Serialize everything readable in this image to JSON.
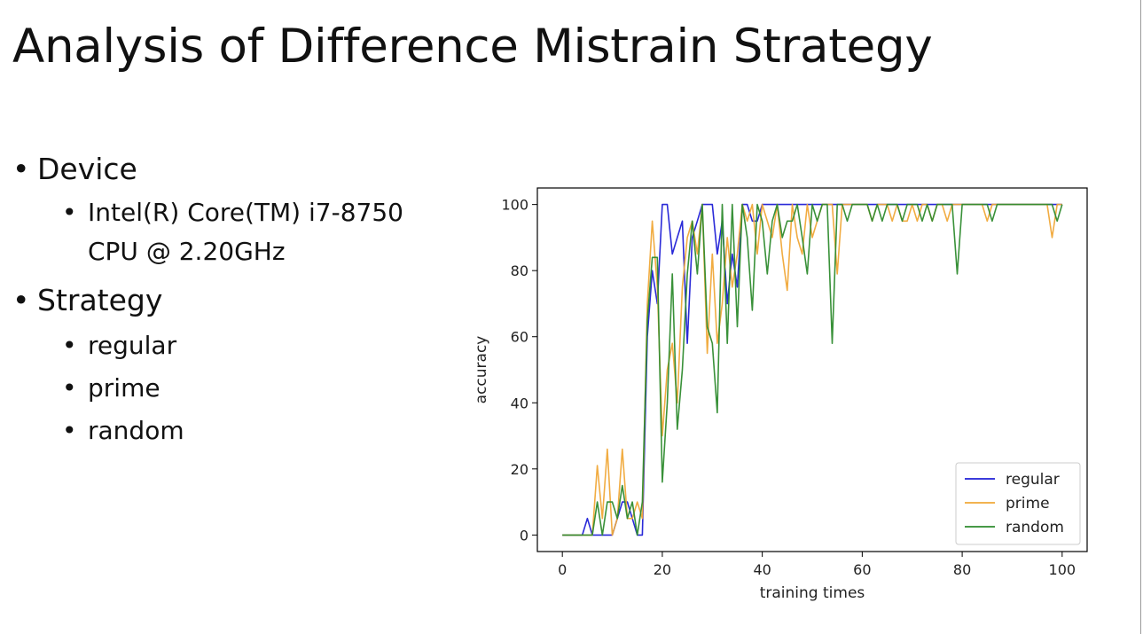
{
  "slide": {
    "title": "Analysis of Difference Mistrain Strategy",
    "bullets": [
      {
        "label": "Device",
        "children": [
          "Intel(R) Core(TM) i7-8750 CPU @ 2.20GHz"
        ]
      },
      {
        "label": "Strategy",
        "children": [
          "regular",
          "prime",
          "random"
        ]
      }
    ]
  },
  "chart_data": {
    "type": "line",
    "xlabel": "training times",
    "ylabel": "accuracy",
    "xlim": [
      -5,
      105
    ],
    "ylim": [
      -5,
      105
    ],
    "xticks": [
      0,
      20,
      40,
      60,
      80,
      100
    ],
    "yticks": [
      0,
      20,
      40,
      60,
      80,
      100
    ],
    "grid": false,
    "legend_position": "lower-right",
    "x": [
      0,
      1,
      2,
      3,
      4,
      5,
      6,
      7,
      8,
      9,
      10,
      11,
      12,
      13,
      14,
      15,
      16,
      17,
      18,
      19,
      20,
      21,
      22,
      23,
      24,
      25,
      26,
      27,
      28,
      29,
      30,
      31,
      32,
      33,
      34,
      35,
      36,
      37,
      38,
      39,
      40,
      41,
      42,
      43,
      44,
      45,
      46,
      47,
      48,
      49,
      50,
      51,
      52,
      53,
      54,
      55,
      56,
      57,
      58,
      59,
      60,
      61,
      62,
      63,
      64,
      65,
      66,
      67,
      68,
      69,
      70,
      71,
      72,
      73,
      74,
      75,
      76,
      77,
      78,
      79,
      80,
      81,
      82,
      83,
      84,
      85,
      86,
      87,
      88,
      89,
      90,
      91,
      92,
      93,
      94,
      95,
      96,
      97,
      98,
      99,
      100
    ],
    "series": [
      {
        "name": "regular",
        "color": "#1f1fd6",
        "values": [
          0,
          0,
          0,
          0,
          0,
          5,
          0,
          0,
          0,
          0,
          0,
          5,
          10,
          10,
          5,
          0,
          0,
          60,
          80,
          70,
          100,
          100,
          85,
          90,
          95,
          58,
          90,
          95,
          100,
          100,
          100,
          85,
          95,
          70,
          85,
          75,
          100,
          100,
          95,
          95,
          100,
          100,
          100,
          100,
          100,
          100,
          100,
          100,
          100,
          100,
          100,
          100,
          100,
          100,
          100,
          100,
          100,
          100,
          100,
          100,
          100,
          100,
          100,
          100,
          100,
          100,
          100,
          100,
          100,
          100,
          100,
          100,
          100,
          100,
          100,
          100,
          100,
          100,
          100,
          100,
          100,
          100,
          100,
          100,
          100,
          100,
          100,
          100,
          100,
          100,
          100,
          100,
          100,
          100,
          100,
          100,
          100,
          100,
          100,
          100,
          100
        ]
      },
      {
        "name": "prime",
        "color": "#f0a838",
        "values": [
          0,
          0,
          0,
          0,
          0,
          0,
          0,
          21,
          5,
          26,
          0,
          5,
          26,
          5,
          5,
          10,
          5,
          70,
          95,
          75,
          30,
          50,
          58,
          40,
          75,
          90,
          95,
          85,
          100,
          55,
          85,
          58,
          70,
          90,
          75,
          85,
          100,
          95,
          100,
          85,
          100,
          95,
          90,
          100,
          85,
          74,
          100,
          90,
          85,
          100,
          90,
          95,
          100,
          100,
          100,
          79,
          100,
          100,
          100,
          100,
          100,
          100,
          95,
          100,
          100,
          100,
          95,
          100,
          95,
          95,
          100,
          95,
          100,
          100,
          95,
          100,
          100,
          95,
          100,
          100,
          100,
          100,
          100,
          100,
          100,
          95,
          100,
          100,
          100,
          100,
          100,
          100,
          100,
          100,
          100,
          100,
          100,
          100,
          90,
          100,
          100
        ]
      },
      {
        "name": "random",
        "color": "#2e8b2e",
        "values": [
          0,
          0,
          0,
          0,
          0,
          0,
          0,
          10,
          0,
          10,
          10,
          5,
          15,
          5,
          10,
          0,
          10,
          65,
          84,
          84,
          16,
          40,
          79,
          32,
          50,
          79,
          95,
          79,
          100,
          63,
          58,
          37,
          100,
          58,
          100,
          63,
          100,
          90,
          68,
          100,
          95,
          79,
          95,
          100,
          90,
          95,
          95,
          100,
          90,
          79,
          100,
          95,
          100,
          100,
          58,
          100,
          100,
          95,
          100,
          100,
          100,
          100,
          95,
          100,
          95,
          100,
          100,
          100,
          95,
          100,
          100,
          100,
          95,
          100,
          95,
          100,
          100,
          100,
          100,
          79,
          100,
          100,
          100,
          100,
          100,
          100,
          95,
          100,
          100,
          100,
          100,
          100,
          100,
          100,
          100,
          100,
          100,
          100,
          100,
          95,
          100
        ]
      }
    ]
  }
}
